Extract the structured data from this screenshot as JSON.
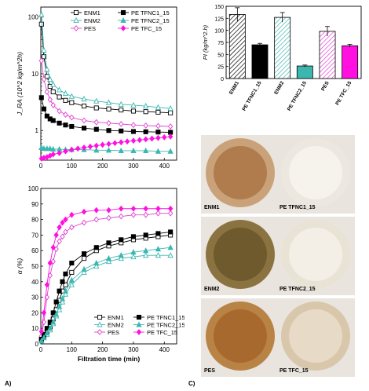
{
  "panel_labels": {
    "a": "A)",
    "c": "C)"
  },
  "chart_data": [
    {
      "type": "line",
      "subplot": "top-left",
      "ylabel": "J_RA (10^2 kg/m^2h)",
      "xlabel": "Filtration time (min)",
      "yscale": "log",
      "xlim": [
        0,
        440
      ],
      "ylim": [
        0.3,
        150
      ],
      "xticks": [
        "0",
        "100",
        "200",
        "300",
        "400"
      ],
      "yticks": [
        "1",
        "10",
        "100"
      ],
      "legend": "top-right",
      "series": [
        {
          "name": "ENM1",
          "color": "#000000",
          "marker": "open-square",
          "x": [
            2,
            10,
            20,
            30,
            40,
            60,
            80,
            100,
            140,
            180,
            220,
            260,
            300,
            340,
            380,
            420
          ],
          "y": [
            75,
            20,
            9,
            6,
            4.8,
            3.9,
            3.4,
            3.1,
            2.7,
            2.5,
            2.4,
            2.3,
            2.2,
            2.15,
            2.1,
            2.05
          ]
        },
        {
          "name": "ENM2",
          "color": "#3cb7b0",
          "marker": "open-triangle",
          "x": [
            2,
            10,
            20,
            30,
            40,
            60,
            80,
            100,
            140,
            180,
            220,
            260,
            300,
            340,
            380,
            420
          ],
          "y": [
            110,
            26,
            12,
            8,
            6.5,
            5.2,
            4.5,
            4.0,
            3.6,
            3.3,
            3.1,
            2.9,
            2.8,
            2.7,
            2.55,
            2.45
          ]
        },
        {
          "name": "PES",
          "color": "#e040d0",
          "marker": "open-diamond",
          "x": [
            2,
            10,
            20,
            30,
            40,
            60,
            80,
            100,
            140,
            180,
            220,
            260,
            300,
            340,
            380,
            420
          ],
          "y": [
            17,
            8,
            4.8,
            3.5,
            2.8,
            2.2,
            1.9,
            1.7,
            1.5,
            1.4,
            1.35,
            1.3,
            1.25,
            1.22,
            1.2,
            1.18
          ]
        },
        {
          "name": "PE TFNC1_15",
          "color": "#000000",
          "marker": "filled-square",
          "x": [
            2,
            10,
            20,
            30,
            40,
            60,
            80,
            100,
            140,
            180,
            220,
            260,
            300,
            340,
            380,
            420
          ],
          "y": [
            3.8,
            2.4,
            1.8,
            1.6,
            1.5,
            1.35,
            1.25,
            1.18,
            1.1,
            1.05,
            1.0,
            0.98,
            0.96,
            0.95,
            0.94,
            0.93
          ]
        },
        {
          "name": "PE TFNC2_15",
          "color": "#3cb7b0",
          "marker": "filled-triangle",
          "x": [
            2,
            10,
            20,
            30,
            40,
            60,
            80,
            100,
            140,
            180,
            220,
            260,
            300,
            340,
            380,
            420
          ],
          "y": [
            0.5,
            0.48,
            0.48,
            0.48,
            0.47,
            0.47,
            0.46,
            0.46,
            0.46,
            0.45,
            0.45,
            0.44,
            0.44,
            0.44,
            0.43,
            0.43
          ]
        },
        {
          "name": "PE TFC_15",
          "color": "#ff10e0",
          "marker": "filled-diamond",
          "x": [
            2,
            10,
            20,
            30,
            40,
            60,
            80,
            100,
            120,
            140,
            160,
            180,
            200,
            220,
            240,
            260,
            280,
            300,
            320,
            340,
            360,
            380,
            400,
            420
          ],
          "y": [
            0.32,
            0.33,
            0.34,
            0.36,
            0.38,
            0.4,
            0.43,
            0.46,
            0.48,
            0.5,
            0.52,
            0.54,
            0.56,
            0.58,
            0.6,
            0.62,
            0.64,
            0.66,
            0.68,
            0.7,
            0.72,
            0.74,
            0.76,
            0.78
          ]
        }
      ]
    },
    {
      "type": "line",
      "subplot": "bottom-left",
      "ylabel": "α (%)",
      "xlabel": "Filtration time (min)",
      "xlim": [
        0,
        440
      ],
      "ylim": [
        0,
        100
      ],
      "xticks": [
        "0",
        "100",
        "200",
        "300",
        "400"
      ],
      "yticks": [
        "0",
        "10",
        "20",
        "30",
        "40",
        "50",
        "60",
        "70",
        "80",
        "90",
        "100"
      ],
      "legend": "bottom-right",
      "series": [
        {
          "name": "ENM1",
          "color": "#000000",
          "marker": "open-square",
          "x": [
            2,
            10,
            20,
            30,
            40,
            50,
            60,
            70,
            80,
            100,
            140,
            180,
            220,
            260,
            300,
            340,
            380,
            420
          ],
          "y": [
            3,
            5,
            8,
            11,
            16,
            22,
            28,
            34,
            38,
            46,
            55,
            60,
            63,
            65,
            67,
            68,
            69,
            70
          ]
        },
        {
          "name": "ENM2",
          "color": "#3cb7b0",
          "marker": "open-triangle",
          "x": [
            2,
            10,
            20,
            30,
            40,
            50,
            60,
            70,
            80,
            100,
            140,
            180,
            220,
            260,
            300,
            340,
            380,
            420
          ],
          "y": [
            2,
            4,
            6,
            9,
            13,
            18,
            22,
            27,
            32,
            38,
            46,
            50,
            53,
            55,
            56,
            57,
            57,
            57
          ]
        },
        {
          "name": "PES",
          "color": "#e040d0",
          "marker": "open-diamond",
          "x": [
            2,
            10,
            20,
            30,
            40,
            50,
            60,
            70,
            80,
            100,
            140,
            180,
            220,
            260,
            300,
            340,
            380,
            420
          ],
          "y": [
            5,
            14,
            30,
            44,
            53,
            61,
            66,
            69,
            72,
            75,
            78,
            80,
            81,
            82,
            83,
            83,
            84,
            84
          ]
        },
        {
          "name": "PE TFNC1_15",
          "color": "#000000",
          "marker": "filled-square",
          "x": [
            2,
            10,
            20,
            30,
            40,
            50,
            60,
            70,
            80,
            100,
            140,
            180,
            220,
            260,
            300,
            340,
            380,
            420
          ],
          "y": [
            3,
            6,
            10,
            14,
            20,
            27,
            34,
            40,
            45,
            52,
            58,
            62,
            65,
            67,
            69,
            70,
            71,
            72
          ]
        },
        {
          "name": "PE TFNC2_15",
          "color": "#3cb7b0",
          "marker": "filled-triangle",
          "x": [
            2,
            10,
            20,
            30,
            40,
            50,
            60,
            70,
            80,
            100,
            140,
            180,
            220,
            260,
            300,
            340,
            380,
            420
          ],
          "y": [
            2,
            4,
            7,
            10,
            14,
            19,
            24,
            29,
            34,
            41,
            48,
            52,
            55,
            57,
            59,
            60,
            61,
            62
          ]
        },
        {
          "name": "PE TFC_15",
          "color": "#ff10e0",
          "marker": "filled-diamond",
          "x": [
            2,
            10,
            20,
            30,
            40,
            50,
            60,
            70,
            80,
            100,
            140,
            180,
            220,
            260,
            300,
            340,
            380,
            420
          ],
          "y": [
            8,
            20,
            38,
            52,
            62,
            70,
            75,
            78,
            80,
            83,
            85,
            86,
            86,
            87,
            87,
            87,
            87,
            87
          ]
        }
      ]
    },
    {
      "type": "bar",
      "subplot": "top-right",
      "ylabel": "PI (kg/m^2.h)",
      "ylim": [
        0,
        150
      ],
      "yticks": [
        "0",
        "25",
        "50",
        "75",
        "100",
        "125",
        "150"
      ],
      "categories": [
        "ENM1",
        "PE TFNC1_15",
        "ENM2",
        "PE TFNC2_15",
        "PES",
        "PE TFC_15"
      ],
      "values": [
        133,
        70,
        127,
        26,
        98,
        68
      ],
      "errors": [
        14,
        3,
        10,
        2,
        10,
        3
      ],
      "colors": [
        "#000000",
        "#000000",
        "#3cb7b0",
        "#3cb7b0",
        "#e040d0",
        "#ff10e0"
      ],
      "hatched": [
        true,
        false,
        true,
        false,
        true,
        false
      ]
    }
  ],
  "photos": [
    {
      "label": "ENM1",
      "outer": "#c9a27a",
      "inner": "#b07c4e"
    },
    {
      "label": "PE TFNC1_15",
      "outer": "#ece7df",
      "inner": "#f6f2ec"
    },
    {
      "label": "ENM2",
      "outer": "#8a7340",
      "inner": "#6e5a2c"
    },
    {
      "label": "PE TFNC2_15",
      "outer": "#e9e3d6",
      "inner": "#f4efe6"
    },
    {
      "label": "PES",
      "outer": "#b98346",
      "inner": "#a8692e"
    },
    {
      "label": "PE TFC_15",
      "outer": "#d9c7ac",
      "inner": "#e7dbc7"
    }
  ]
}
